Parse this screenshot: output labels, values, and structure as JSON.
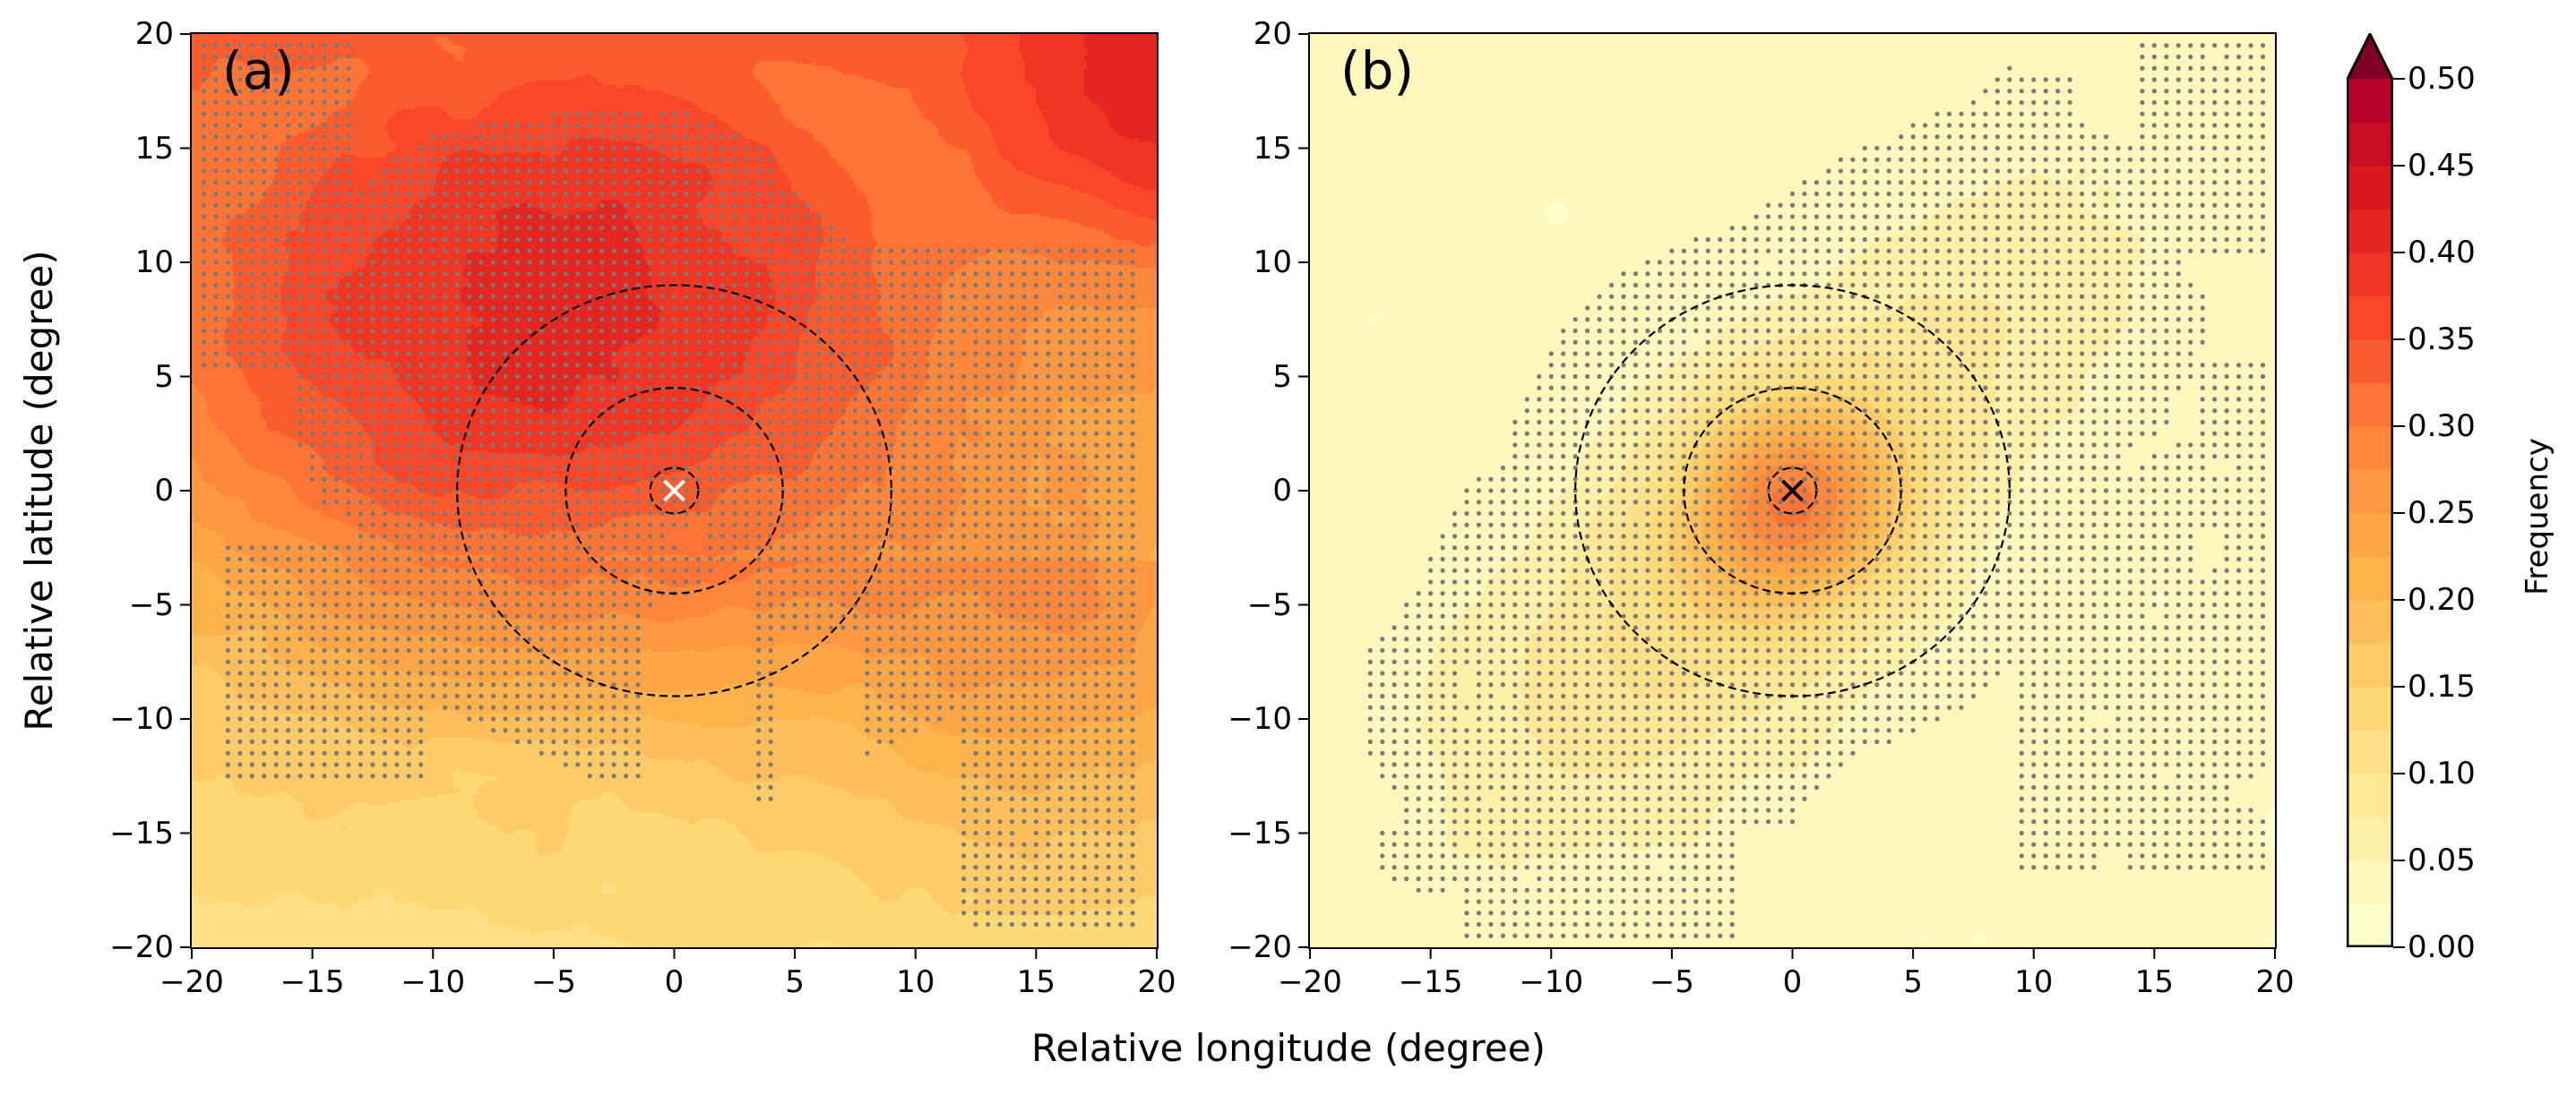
{
  "chart_data": [
    {
      "type": "heatmap",
      "subtype": "filled-contour with stippling",
      "panel_label": "(a)",
      "xlabel": "Relative longitude (degree)",
      "ylabel": "Relative latitude (degree)",
      "xlim": [
        -20,
        20
      ],
      "ylim": [
        -20,
        20
      ],
      "xticks": [
        -20,
        -15,
        -10,
        -5,
        0,
        5,
        10,
        15,
        20
      ],
      "yticks": [
        -20,
        -15,
        -10,
        -5,
        0,
        5,
        10,
        15,
        20
      ],
      "xtick_labels": [
        "−20",
        "−15",
        "−10",
        "−5",
        "0",
        "5",
        "10",
        "15",
        "20"
      ],
      "ytick_labels": [
        "−20",
        "−15",
        "−10",
        "−5",
        "0",
        "5",
        "10",
        "15",
        "20"
      ],
      "center_marker": {
        "symbol": "x",
        "x": 0,
        "y": 0,
        "color": "#ffffff"
      },
      "circles_radius_deg": [
        1,
        4.5,
        9
      ],
      "field_features": {
        "maximum": {
          "x": -5,
          "y": 6,
          "value": 0.47
        },
        "minimum_region": "south-west corner, ~0.05",
        "secondary_high": {
          "x": 19,
          "y": 17,
          "value": 0.4
        },
        "value_at_center": 0.4
      },
      "stipple_grid_spacing_deg": 0.5
    },
    {
      "type": "heatmap",
      "subtype": "filled-contour with stippling",
      "panel_label": "(b)",
      "xlabel": "Relative longitude (degree)",
      "xlim": [
        -20,
        20
      ],
      "ylim": [
        -20,
        20
      ],
      "xticks": [
        -20,
        -15,
        -10,
        -5,
        0,
        5,
        10,
        15,
        20
      ],
      "yticks": [
        -20,
        -15,
        -10,
        -5,
        0,
        5,
        10,
        15,
        20
      ],
      "xtick_labels": [
        "−20",
        "−15",
        "−10",
        "−5",
        "0",
        "5",
        "10",
        "15",
        "20"
      ],
      "ytick_labels": [
        "−20",
        "−15",
        "−10",
        "−5",
        "0",
        "5",
        "10",
        "15",
        "20"
      ],
      "center_marker": {
        "symbol": "x",
        "x": 0,
        "y": 0,
        "color": "#000000"
      },
      "circles_radius_deg": [
        1,
        4.5,
        9
      ],
      "field_features": {
        "maximum": {
          "x": 0,
          "y": -0.5,
          "value": 0.26
        },
        "background": 0.03,
        "elongation": "south-west to north-east band ~0.06–0.1"
      },
      "stipple_grid_spacing_deg": 0.5
    }
  ],
  "colorbar": {
    "label": "Frequency",
    "min": 0.0,
    "max": 0.5,
    "level_step": 0.025,
    "extend": "max",
    "colormap": "YlOrRd",
    "ticks": [
      "0.00",
      "0.05",
      "0.10",
      "0.15",
      "0.20",
      "0.25",
      "0.30",
      "0.35",
      "0.40",
      "0.45",
      "0.50"
    ],
    "colors": [
      "#ffffcc",
      "#fff7bb",
      "#fff0a8",
      "#fee895",
      "#fee087",
      "#fed976",
      "#fecb68",
      "#febf5a",
      "#feb24c",
      "#fea546",
      "#fd9740",
      "#fd873a",
      "#fd7434",
      "#fc5b2e",
      "#f94528",
      "#f03523",
      "#e5251f",
      "#d9181e",
      "#c90d22",
      "#b60026"
    ],
    "over_color": "#800026"
  },
  "figure": {
    "xlabel": "Relative longitude (degree)",
    "ylabel": "Relative latitude (degree)",
    "stipple_color": "#7a7a7a"
  }
}
